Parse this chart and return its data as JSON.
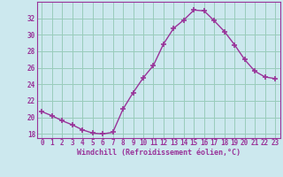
{
  "x": [
    0,
    1,
    2,
    3,
    4,
    5,
    6,
    7,
    8,
    9,
    10,
    11,
    12,
    13,
    14,
    15,
    16,
    17,
    18,
    19,
    20,
    21,
    22,
    23
  ],
  "y": [
    20.7,
    20.2,
    19.6,
    19.1,
    18.5,
    18.1,
    18.0,
    18.2,
    21.0,
    23.0,
    24.8,
    26.3,
    28.9,
    30.8,
    31.8,
    33.0,
    32.9,
    31.7,
    30.4,
    28.8,
    27.0,
    25.6,
    24.9,
    24.7
  ],
  "line_color": "#993399",
  "marker": "+",
  "marker_size": 5,
  "marker_lw": 1.2,
  "bg_color": "#cce8ee",
  "grid_color": "#99ccbb",
  "xlabel": "Windchill (Refroidissement éolien,°C)",
  "xlabel_color": "#993399",
  "tick_color": "#993399",
  "spine_color": "#993399",
  "ylim": [
    17.5,
    34.0
  ],
  "xlim": [
    -0.5,
    23.5
  ],
  "yticks": [
    18,
    20,
    22,
    24,
    26,
    28,
    30,
    32
  ],
  "xticks": [
    0,
    1,
    2,
    3,
    4,
    5,
    6,
    7,
    8,
    9,
    10,
    11,
    12,
    13,
    14,
    15,
    16,
    17,
    18,
    19,
    20,
    21,
    22,
    23
  ],
  "tick_fontsize": 5.5,
  "xlabel_fontsize": 6.0,
  "linewidth": 1.0
}
